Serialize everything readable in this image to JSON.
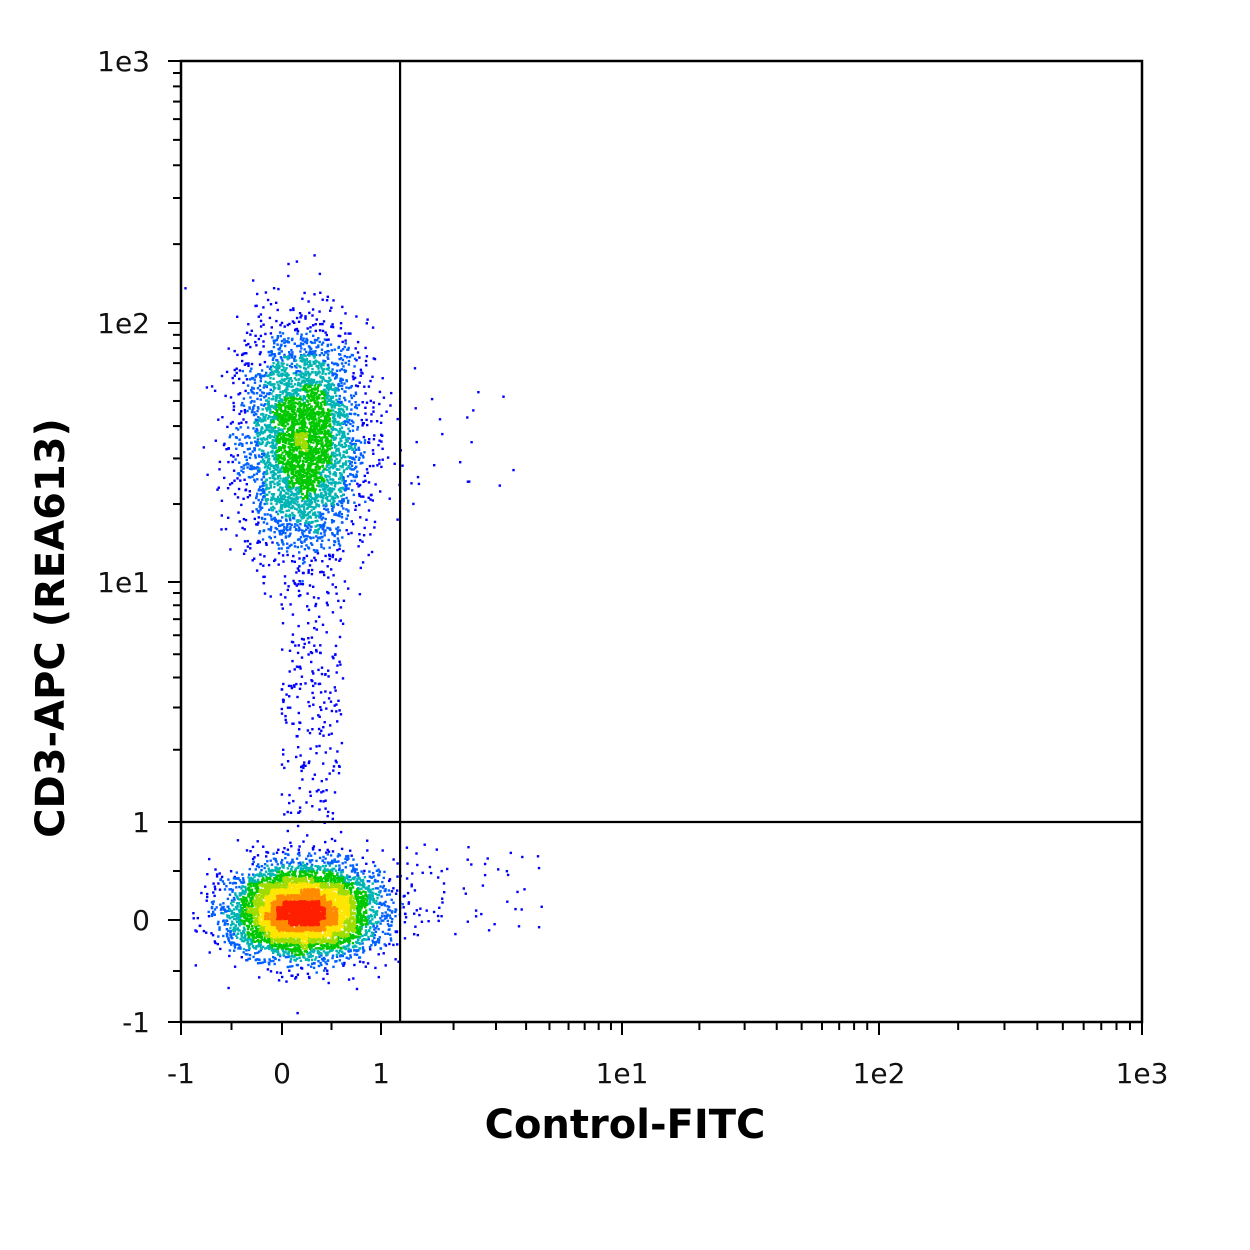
{
  "chart_data": {
    "type": "scatter",
    "subtype": "flow cytometry density dot plot (biexponential axes)",
    "xlabel": "Control-FITC",
    "ylabel": "CD3-APC (REA613)",
    "x_scale": "biexponential",
    "y_scale": "biexponential",
    "xlim": [
      -1,
      1000
    ],
    "ylim": [
      -1,
      1000
    ],
    "x_ticks": [
      {
        "value": -1,
        "label": "-1"
      },
      {
        "value": 0,
        "label": "0"
      },
      {
        "value": 1,
        "label": "1"
      },
      {
        "value": 10,
        "label": "1e1"
      },
      {
        "value": 100,
        "label": "1e2"
      },
      {
        "value": 1000,
        "label": "1e3"
      }
    ],
    "y_ticks": [
      {
        "value": -1,
        "label": "-1"
      },
      {
        "value": 0,
        "label": "0"
      },
      {
        "value": 1,
        "label": "1"
      },
      {
        "value": 10,
        "label": "1e1"
      },
      {
        "value": 100,
        "label": "1e2"
      },
      {
        "value": 1000,
        "label": "1e3"
      }
    ],
    "quadrant_gates": {
      "x": 1.2,
      "y": 1
    },
    "populations": [
      {
        "center_x": 0.2,
        "center_y": 35,
        "count": 4200,
        "peak_color": "green"
      },
      {
        "center_x": 0.2,
        "center_y": 0.1,
        "count": 6500,
        "peak_color": "red"
      },
      {
        "center_x": 0.3,
        "center_y": 3,
        "count": 260,
        "peak_color": "blue"
      }
    ],
    "density_colors": [
      "#0000ff",
      "#0060ff",
      "#00b4b4",
      "#00c800",
      "#a0dc00",
      "#ffe600",
      "#ff8c00",
      "#ff2000"
    ],
    "grid": false,
    "legend": "none"
  }
}
